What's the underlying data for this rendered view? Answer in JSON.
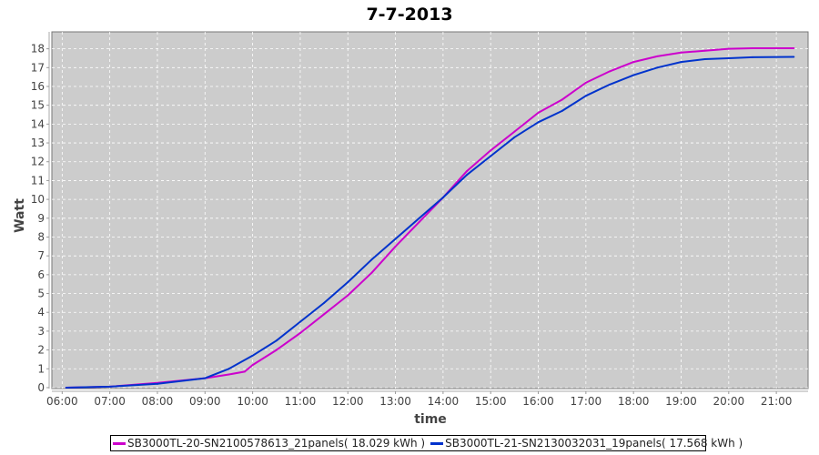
{
  "chart_data": {
    "type": "line",
    "title": "7-7-2013",
    "xlabel": "time",
    "ylabel": "Watt",
    "xlim": [
      "05:47",
      "21:40"
    ],
    "ylim": [
      -0.05,
      18.9
    ],
    "xticks": [
      "06:00",
      "07:00",
      "08:00",
      "09:00",
      "10:00",
      "11:00",
      "12:00",
      "13:00",
      "14:00",
      "15:00",
      "16:00",
      "17:00",
      "18:00",
      "19:00",
      "20:00",
      "21:00"
    ],
    "yticks": [
      0,
      1,
      2,
      3,
      4,
      5,
      6,
      7,
      8,
      9,
      10,
      11,
      12,
      13,
      14,
      15,
      16,
      17,
      18
    ],
    "grid": true,
    "background": "#cccccc",
    "legend_position": "bottom",
    "series": [
      {
        "name": "SB3000TL-20-SN2100578613_21panels( 18.029 kWh )",
        "color": "#cc00cc",
        "x": [
          "06:05",
          "07:00",
          "08:00",
          "09:00",
          "09:30",
          "09:50",
          "10:00",
          "10:30",
          "11:00",
          "11:30",
          "12:00",
          "12:30",
          "13:00",
          "13:30",
          "14:00",
          "14:30",
          "15:00",
          "15:30",
          "16:00",
          "16:30",
          "17:00",
          "17:30",
          "18:00",
          "18:30",
          "19:00",
          "19:30",
          "20:00",
          "20:30",
          "21:22"
        ],
        "values": [
          0.0,
          0.05,
          0.25,
          0.5,
          0.7,
          0.85,
          1.2,
          2.0,
          2.9,
          3.9,
          4.9,
          6.1,
          7.5,
          8.8,
          10.1,
          11.5,
          12.6,
          13.6,
          14.6,
          15.3,
          16.2,
          16.8,
          17.3,
          17.6,
          17.8,
          17.9,
          18.0,
          18.03,
          18.03
        ]
      },
      {
        "name": "SB3000TL-21-SN2130032031_19panels( 17.568 kWh )",
        "color": "#0033cc",
        "x": [
          "06:05",
          "07:00",
          "08:00",
          "09:00",
          "09:30",
          "10:00",
          "10:30",
          "11:00",
          "11:30",
          "12:00",
          "12:30",
          "13:00",
          "13:30",
          "14:00",
          "14:30",
          "15:00",
          "15:30",
          "16:00",
          "16:30",
          "17:00",
          "17:30",
          "18:00",
          "18:30",
          "19:00",
          "19:30",
          "20:00",
          "20:30",
          "21:22"
        ],
        "values": [
          0.0,
          0.05,
          0.2,
          0.5,
          1.0,
          1.7,
          2.5,
          3.5,
          4.5,
          5.6,
          6.8,
          7.9,
          9.0,
          10.1,
          11.3,
          12.3,
          13.3,
          14.1,
          14.7,
          15.5,
          16.1,
          16.6,
          17.0,
          17.3,
          17.45,
          17.5,
          17.55,
          17.57
        ]
      }
    ]
  }
}
